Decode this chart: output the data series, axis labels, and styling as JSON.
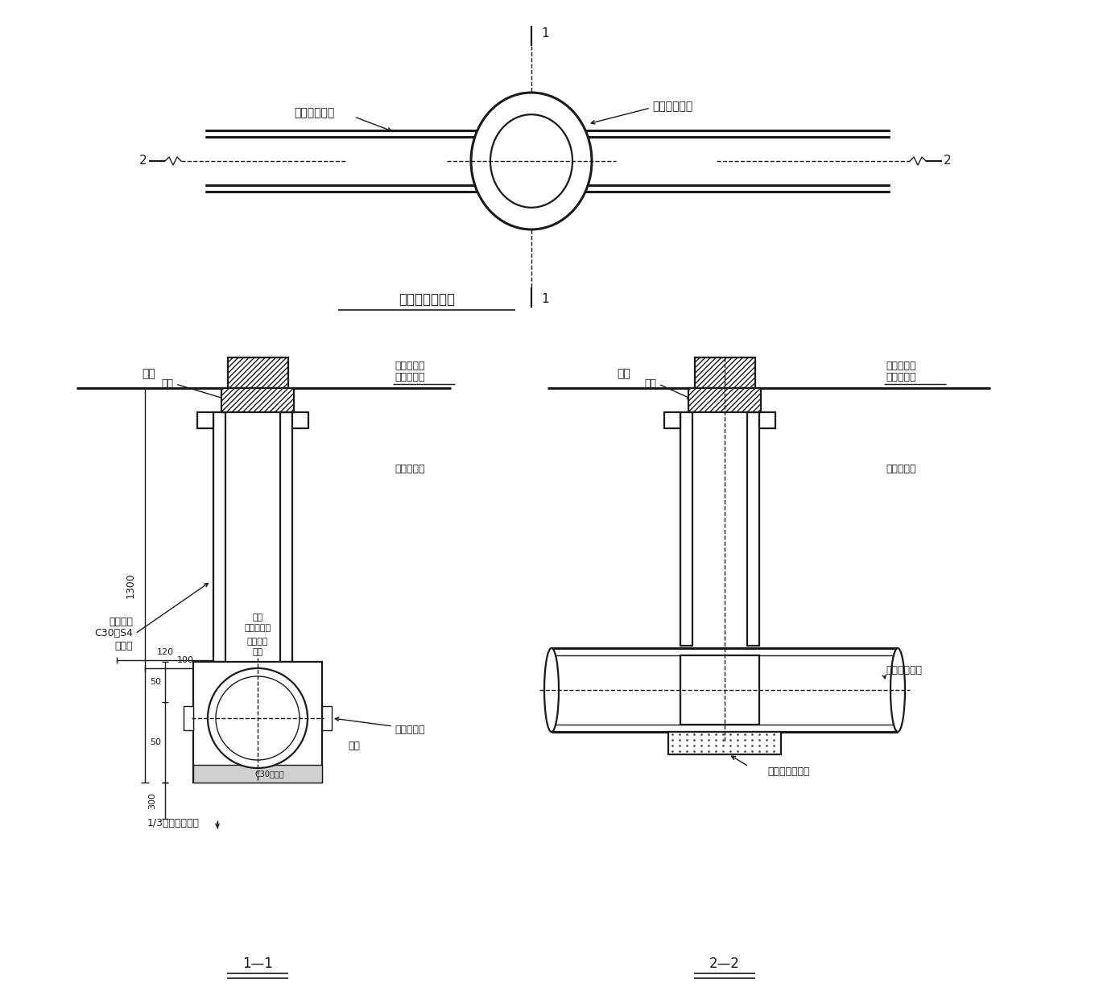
{
  "bg_color": "#ffffff",
  "line_color": "#1a1a1a",
  "title_plan": "沉管平面布置图",
  "label_existing_pipe": "现有排水管道",
  "label_sunk_well": "沉管式检查井",
  "label_section11": "1—1",
  "label_section22": "2—2",
  "label_road_surface": "路面",
  "label_cover_plate": "盖板",
  "label_well_raise": "检查井接高",
  "label_base_level": "基层上平面",
  "label_sunk_inspection": "沉管检查井",
  "label_original_rebar": "原管材钢筋",
  "label_groove": "凹槽",
  "label_c30": "C30混凝土",
  "label_existing_drain": "现有排水管道",
  "label_foundation": "沉管检查井基础",
  "dim_100": "100",
  "dim_120": "120",
  "dim_50a": "50",
  "dim_50b": "50",
  "dim_300": "300",
  "dim_1300": "1300",
  "dim_13_outer": "1/3排水管道外径"
}
